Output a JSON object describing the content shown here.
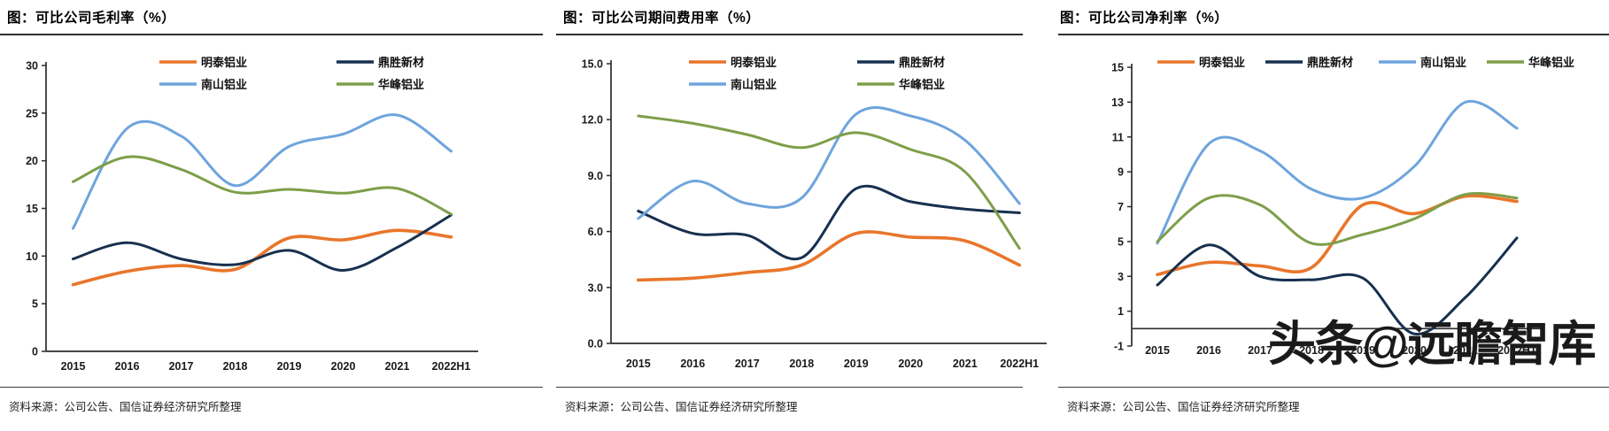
{
  "source_note": "资料来源：公司公告、国信证券经济研究所整理",
  "watermark": "头条@远瞻智库",
  "series_colors": {
    "mingtai": "#E8762C",
    "dingsheng": "#17304F",
    "nanshan": "#6EA4DD",
    "huafeng": "#7E9E49"
  },
  "chart_data": [
    {
      "type": "line",
      "title": "图：可比公司毛利率（%）",
      "xlabel": "",
      "ylabel": "",
      "ylim": [
        0,
        30
      ],
      "ytick_step": 5,
      "ytick_decimals": 0,
      "grid": false,
      "legend_position": "top-inside",
      "categories": [
        "2015",
        "2016",
        "2017",
        "2018",
        "2019",
        "2020",
        "2021",
        "2022H1"
      ],
      "series": [
        {
          "name": "明泰铝业",
          "color": "#E8762C",
          "values": [
            7.0,
            8.4,
            9.0,
            8.6,
            11.9,
            11.7,
            12.7,
            12.0
          ]
        },
        {
          "name": "鼎胜新材",
          "color": "#17304F",
          "values": [
            9.7,
            11.4,
            9.7,
            9.1,
            10.6,
            8.5,
            10.9,
            14.3
          ]
        },
        {
          "name": "南山铝业",
          "color": "#6EA4DD",
          "values": [
            12.9,
            23.4,
            22.6,
            17.4,
            21.5,
            22.8,
            24.8,
            21.0
          ]
        },
        {
          "name": "华峰铝业",
          "color": "#7E9E49",
          "values": [
            17.8,
            20.4,
            19.1,
            16.7,
            17.0,
            16.6,
            17.1,
            14.4
          ]
        }
      ]
    },
    {
      "type": "line",
      "title": "图：可比公司期间费用率（%）",
      "xlabel": "",
      "ylabel": "",
      "ylim": [
        0,
        15
      ],
      "ytick_step": 3,
      "ytick_decimals": 1,
      "grid": false,
      "legend_position": "top-inside",
      "categories": [
        "2015",
        "2016",
        "2017",
        "2018",
        "2019",
        "2020",
        "2021",
        "2022H1"
      ],
      "series": [
        {
          "name": "明泰铝业",
          "color": "#E8762C",
          "values": [
            3.4,
            3.5,
            3.8,
            4.2,
            5.9,
            5.7,
            5.5,
            4.2
          ]
        },
        {
          "name": "鼎胜新材",
          "color": "#17304F",
          "values": [
            7.1,
            5.9,
            5.8,
            4.6,
            8.3,
            7.6,
            7.2,
            7.0
          ]
        },
        {
          "name": "南山铝业",
          "color": "#6EA4DD",
          "values": [
            6.7,
            8.7,
            7.5,
            7.8,
            12.3,
            12.2,
            10.9,
            7.5
          ]
        },
        {
          "name": "华峰铝业",
          "color": "#7E9E49",
          "values": [
            12.2,
            11.8,
            11.2,
            10.5,
            11.3,
            10.4,
            9.2,
            5.1
          ]
        }
      ]
    },
    {
      "type": "line",
      "title": "图：可比公司净利率（%）",
      "xlabel": "",
      "ylabel": "",
      "ylim": [
        -1,
        15
      ],
      "ytick_step": 2,
      "ytick_decimals": 0,
      "grid": false,
      "legend_position": "top-inside",
      "categories": [
        "2015",
        "2016",
        "2017",
        "2018",
        "2019",
        "2020",
        "2021",
        "2022H1"
      ],
      "series": [
        {
          "name": "明泰铝业",
          "color": "#E8762C",
          "values": [
            3.1,
            3.8,
            3.6,
            3.5,
            7.1,
            6.6,
            7.6,
            7.3
          ]
        },
        {
          "name": "鼎胜新材",
          "color": "#17304F",
          "values": [
            2.5,
            4.8,
            3.0,
            2.8,
            2.9,
            -0.3,
            1.8,
            5.2
          ]
        },
        {
          "name": "南山铝业",
          "color": "#6EA4DD",
          "values": [
            4.9,
            10.6,
            10.2,
            8.0,
            7.5,
            9.3,
            13.0,
            11.5
          ]
        },
        {
          "name": "华峰铝业",
          "color": "#7E9E49",
          "values": [
            5.0,
            7.5,
            7.1,
            4.9,
            5.4,
            6.3,
            7.7,
            7.5
          ]
        }
      ]
    }
  ]
}
